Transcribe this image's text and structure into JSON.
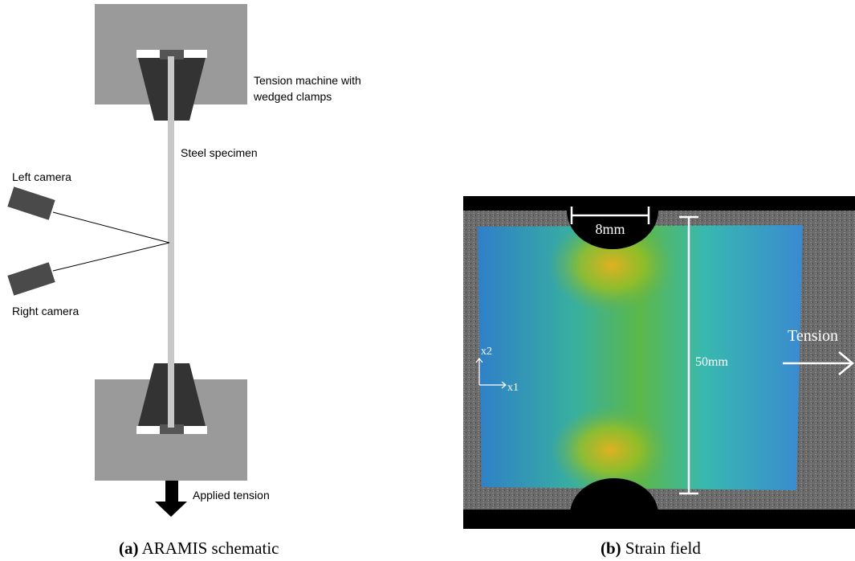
{
  "panel_a": {
    "labels": {
      "machine": [
        "Tension machine with",
        "wedged clamps"
      ],
      "specimen": "Steel specimen",
      "left_camera": "Left camera",
      "right_camera": "Right camera",
      "applied": "Applied tension"
    },
    "caption": {
      "label": "(a)",
      "text": "ARAMIS schematic"
    }
  },
  "panel_b": {
    "annotations": {
      "width": "8mm",
      "height": "50mm",
      "tension": "Tension",
      "x1": "x1",
      "x2": "x2"
    },
    "caption": {
      "label": "(b)",
      "text": "Strain field"
    }
  }
}
